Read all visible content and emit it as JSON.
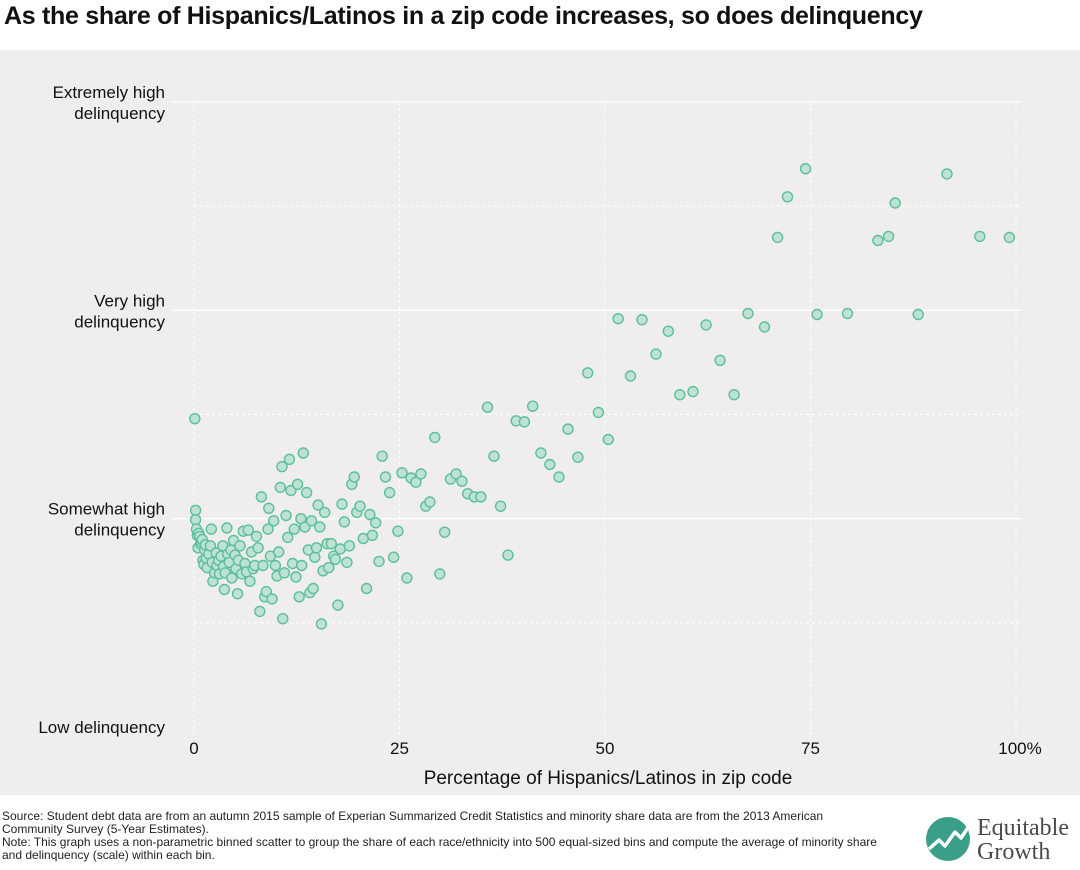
{
  "title": "As the share of Hispanics/Latinos in a zip code increases, so does delinquency",
  "footer": {
    "source": "Source: Student debt data are from an autumn 2015 sample of Experian Summarized Credit Statistics and minority share data are from the 2013 American Community Survey (5-Year Estimates).",
    "note": "Note: This graph uses a non-parametric binned scatter to group the share of each race/ethnicity into 500 equal-sized bins and compute the average of minority share and delinquency (scale) within each bin."
  },
  "logo": {
    "line1": "Equitable",
    "line2": "Growth",
    "mark_color": "#3a9e88"
  },
  "colors": {
    "point_fill": "#bfe3d3",
    "point_stroke": "#5bbf9b",
    "plot_bg": "#efeeec"
  },
  "chart_data": {
    "type": "scatter",
    "title": "As the share of Hispanics/Latinos in a zip code increases, so does delinquency",
    "xlabel": "Percentage of Hispanics/Latinos in zip code",
    "ylabel": "",
    "xlim": [
      0,
      100
    ],
    "ylim": [
      0,
      6
    ],
    "x_ticks": [
      0,
      25,
      50,
      75,
      100
    ],
    "x_tick_labels": [
      "0",
      "25",
      "50",
      "75",
      "100%"
    ],
    "y_ticks": [
      0,
      2,
      4,
      6
    ],
    "y_tick_labels": [
      "Low delinquency",
      "Somewhat high delinquency",
      "Very high delinquency",
      "Extremely high delinquency"
    ],
    "y_tick_label_lines": [
      [
        "Low delinquency"
      ],
      [
        "Somewhat high",
        "delinquency"
      ],
      [
        "Very high",
        "delinquency"
      ],
      [
        "Extremely high",
        "delinquency"
      ]
    ],
    "grid": true,
    "points": [
      [
        0.1,
        2.96
      ],
      [
        0.2,
        2.08
      ],
      [
        0.2,
        1.99
      ],
      [
        0.3,
        1.9
      ],
      [
        0.4,
        1.84
      ],
      [
        0.5,
        1.72
      ],
      [
        0.6,
        1.86
      ],
      [
        0.7,
        1.83
      ],
      [
        0.8,
        1.76
      ],
      [
        0.9,
        1.78
      ],
      [
        1.0,
        1.8
      ],
      [
        1.1,
        1.6
      ],
      [
        1.2,
        1.56
      ],
      [
        1.3,
        1.7
      ],
      [
        1.4,
        1.75
      ],
      [
        1.5,
        1.62
      ],
      [
        1.6,
        1.53
      ],
      [
        1.8,
        1.66
      ],
      [
        2.0,
        1.74
      ],
      [
        2.1,
        1.9
      ],
      [
        2.2,
        1.58
      ],
      [
        2.3,
        1.4
      ],
      [
        2.5,
        1.48
      ],
      [
        2.7,
        1.67
      ],
      [
        2.8,
        1.55
      ],
      [
        3.0,
        1.6
      ],
      [
        3.1,
        1.47
      ],
      [
        3.3,
        1.64
      ],
      [
        3.5,
        1.74
      ],
      [
        3.6,
        1.54
      ],
      [
        3.7,
        1.32
      ],
      [
        3.8,
        1.48
      ],
      [
        4.0,
        1.91
      ],
      [
        4.1,
        1.66
      ],
      [
        4.3,
        1.58
      ],
      [
        4.5,
        1.7
      ],
      [
        4.6,
        1.43
      ],
      [
        4.8,
        1.79
      ],
      [
        5.0,
        1.65
      ],
      [
        5.1,
        1.52
      ],
      [
        5.3,
        1.28
      ],
      [
        5.4,
        1.6
      ],
      [
        5.6,
        1.74
      ],
      [
        5.8,
        1.47
      ],
      [
        6.0,
        1.88
      ],
      [
        6.2,
        1.57
      ],
      [
        6.4,
        1.49
      ],
      [
        6.6,
        1.89
      ],
      [
        6.8,
        1.4
      ],
      [
        7.0,
        1.68
      ],
      [
        7.2,
        1.52
      ],
      [
        7.4,
        1.55
      ],
      [
        7.6,
        1.83
      ],
      [
        7.8,
        1.72
      ],
      [
        8.0,
        1.11
      ],
      [
        8.2,
        2.21
      ],
      [
        8.4,
        1.55
      ],
      [
        8.6,
        1.25
      ],
      [
        8.8,
        1.3
      ],
      [
        9.0,
        1.9
      ],
      [
        9.1,
        2.1
      ],
      [
        9.3,
        1.64
      ],
      [
        9.5,
        1.23
      ],
      [
        9.7,
        1.98
      ],
      [
        9.9,
        1.55
      ],
      [
        10.1,
        1.45
      ],
      [
        10.3,
        1.68
      ],
      [
        10.5,
        2.3
      ],
      [
        10.7,
        2.5
      ],
      [
        10.8,
        1.04
      ],
      [
        11.0,
        1.48
      ],
      [
        11.2,
        2.03
      ],
      [
        11.4,
        1.82
      ],
      [
        11.6,
        2.57
      ],
      [
        11.8,
        2.27
      ],
      [
        12.0,
        1.57
      ],
      [
        12.2,
        1.9
      ],
      [
        12.4,
        1.44
      ],
      [
        12.6,
        2.33
      ],
      [
        12.8,
        1.25
      ],
      [
        13.0,
        2.0
      ],
      [
        13.1,
        1.55
      ],
      [
        13.3,
        2.63
      ],
      [
        13.5,
        1.92
      ],
      [
        13.7,
        2.25
      ],
      [
        13.9,
        1.7
      ],
      [
        14.1,
        1.29
      ],
      [
        14.3,
        1.98
      ],
      [
        14.5,
        1.33
      ],
      [
        14.7,
        1.63
      ],
      [
        14.9,
        1.72
      ],
      [
        15.1,
        2.13
      ],
      [
        15.3,
        1.92
      ],
      [
        15.5,
        0.99
      ],
      [
        15.7,
        1.5
      ],
      [
        15.9,
        2.06
      ],
      [
        16.2,
        1.76
      ],
      [
        16.4,
        1.53
      ],
      [
        16.7,
        1.76
      ],
      [
        17.0,
        1.64
      ],
      [
        17.2,
        1.61
      ],
      [
        17.5,
        1.17
      ],
      [
        17.8,
        1.71
      ],
      [
        18.0,
        2.14
      ],
      [
        18.3,
        1.97
      ],
      [
        18.6,
        1.58
      ],
      [
        18.9,
        1.74
      ],
      [
        19.2,
        2.33
      ],
      [
        19.5,
        2.4
      ],
      [
        19.8,
        2.06
      ],
      [
        20.2,
        2.12
      ],
      [
        20.6,
        1.81
      ],
      [
        21.0,
        1.33
      ],
      [
        21.4,
        2.04
      ],
      [
        21.7,
        1.84
      ],
      [
        22.1,
        1.96
      ],
      [
        22.5,
        1.59
      ],
      [
        22.9,
        2.6
      ],
      [
        23.3,
        2.4
      ],
      [
        23.8,
        2.25
      ],
      [
        24.3,
        1.63
      ],
      [
        24.8,
        1.88
      ],
      [
        25.3,
        2.44
      ],
      [
        25.9,
        1.43
      ],
      [
        26.4,
        2.39
      ],
      [
        27.0,
        2.35
      ],
      [
        27.6,
        2.43
      ],
      [
        28.2,
        2.12
      ],
      [
        28.7,
        2.16
      ],
      [
        29.3,
        2.78
      ],
      [
        29.9,
        1.47
      ],
      [
        30.5,
        1.87
      ],
      [
        31.2,
        2.38
      ],
      [
        31.9,
        2.43
      ],
      [
        32.6,
        2.36
      ],
      [
        33.3,
        2.24
      ],
      [
        34.1,
        2.21
      ],
      [
        34.9,
        2.21
      ],
      [
        35.7,
        3.07
      ],
      [
        36.5,
        2.6
      ],
      [
        37.3,
        2.12
      ],
      [
        38.2,
        1.65
      ],
      [
        39.2,
        2.94
      ],
      [
        40.2,
        2.93
      ],
      [
        41.2,
        3.08
      ],
      [
        42.2,
        2.63
      ],
      [
        43.3,
        2.52
      ],
      [
        44.4,
        2.4
      ],
      [
        45.5,
        2.86
      ],
      [
        46.7,
        2.59
      ],
      [
        47.9,
        3.4
      ],
      [
        49.2,
        3.02
      ],
      [
        50.4,
        2.76
      ],
      [
        51.6,
        3.92
      ],
      [
        53.1,
        3.37
      ],
      [
        54.5,
        3.91
      ],
      [
        56.2,
        3.58
      ],
      [
        57.7,
        3.8
      ],
      [
        59.1,
        3.19
      ],
      [
        60.7,
        3.22
      ],
      [
        62.3,
        3.86
      ],
      [
        64.0,
        3.52
      ],
      [
        65.7,
        3.19
      ],
      [
        67.4,
        3.97
      ],
      [
        69.4,
        3.84
      ],
      [
        71.0,
        4.7
      ],
      [
        72.2,
        5.09
      ],
      [
        74.4,
        5.36
      ],
      [
        75.8,
        3.96
      ],
      [
        79.5,
        3.97
      ],
      [
        83.2,
        4.67
      ],
      [
        84.5,
        4.71
      ],
      [
        85.3,
        5.03
      ],
      [
        88.1,
        3.96
      ],
      [
        91.6,
        5.31
      ],
      [
        95.6,
        4.71
      ],
      [
        99.2,
        4.7
      ]
    ]
  }
}
